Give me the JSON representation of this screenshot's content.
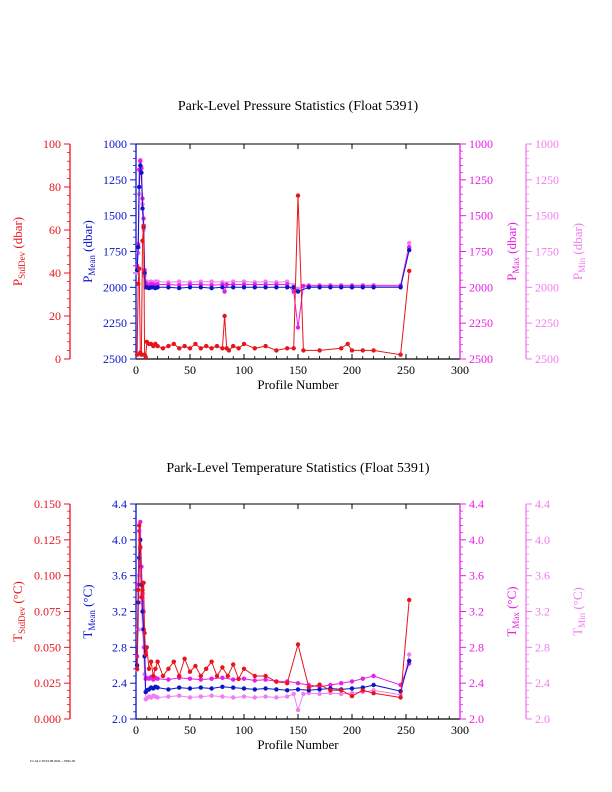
{
  "colors": {
    "stddev": "#e8141b",
    "mean": "#0a14c8",
    "max": "#e81ee8",
    "min": "#f27cf2"
  },
  "footnote": "Fri Jul 2 18:34:08 2021 ~ 5391-00",
  "chart_data": [
    {
      "type": "line",
      "title": "Park-Level Pressure Statistics (Float 5391)",
      "xlabel": "Profile Number",
      "xlim": [
        0,
        300
      ],
      "x_ticks": [
        "0",
        "50",
        "100",
        "150",
        "200",
        "250",
        "300"
      ],
      "axes": [
        {
          "id": "stddev",
          "side": "left-outer",
          "label_main": "P",
          "label_sub": "StdDev",
          "label_unit": " (dbar)",
          "lim": [
            0,
            100
          ],
          "inverted": false,
          "ticks": [
            "0",
            "20",
            "40",
            "60",
            "80",
            "100"
          ]
        },
        {
          "id": "mean",
          "side": "left-inner",
          "label_main": "P",
          "label_sub": "Mean",
          "label_unit": " (dbar)",
          "lim": [
            1000,
            2500
          ],
          "inverted": true,
          "ticks": [
            "1000",
            "1250",
            "1500",
            "1750",
            "2000",
            "2250",
            "2500"
          ]
        },
        {
          "id": "max",
          "side": "right-inner",
          "label_main": "P",
          "label_sub": "Max",
          "label_unit": " (dbar)",
          "lim": [
            1000,
            2500
          ],
          "inverted": true,
          "ticks": [
            "1000",
            "1250",
            "1500",
            "1750",
            "2000",
            "2250",
            "2500"
          ]
        },
        {
          "id": "min",
          "side": "right-outer",
          "label_main": "P",
          "label_sub": "Min",
          "label_unit": " (dbar)",
          "lim": [
            1000,
            2500
          ],
          "inverted": true,
          "ticks": [
            "1000",
            "1250",
            "1500",
            "1750",
            "2000",
            "2250",
            "2500"
          ]
        }
      ],
      "series": [
        {
          "axis": "stddev",
          "x": [
            1,
            2,
            3,
            4,
            5,
            6,
            7,
            8,
            9,
            10,
            12,
            14,
            16,
            18,
            20,
            25,
            30,
            35,
            40,
            45,
            50,
            55,
            60,
            65,
            70,
            75,
            80,
            82,
            84,
            86,
            90,
            95,
            100,
            110,
            120,
            130,
            140,
            146,
            150,
            155,
            170,
            190,
            196,
            200,
            210,
            220,
            245,
            253
          ],
          "y": [
            2,
            35,
            42,
            3,
            2,
            55,
            62,
            2,
            1,
            8,
            7,
            7,
            6,
            7,
            6,
            5,
            6,
            7,
            5,
            6,
            5,
            7,
            5,
            6,
            5,
            6,
            5,
            20,
            5,
            4,
            6,
            5,
            7,
            5,
            6,
            4,
            5,
            5,
            76,
            4,
            4,
            5,
            7,
            4,
            4,
            4,
            2,
            41
          ]
        },
        {
          "axis": "mean",
          "x": [
            1,
            2,
            3,
            4,
            5,
            6,
            7,
            8,
            9,
            10,
            12,
            14,
            16,
            18,
            20,
            30,
            40,
            50,
            60,
            70,
            80,
            90,
            100,
            110,
            120,
            130,
            140,
            146,
            150,
            160,
            170,
            180,
            190,
            200,
            210,
            220,
            245,
            253
          ],
          "y": [
            1880,
            1720,
            1300,
            1150,
            1200,
            1450,
            1580,
            1900,
            2000,
            2000,
            2005,
            2000,
            2000,
            2005,
            2000,
            2000,
            2005,
            2000,
            2000,
            2005,
            2000,
            2000,
            2000,
            2000,
            2000,
            2000,
            2000,
            2000,
            2030,
            2000,
            2000,
            2000,
            2000,
            2000,
            2000,
            2000,
            2000,
            1740
          ]
        },
        {
          "axis": "max",
          "x": [
            1,
            2,
            3,
            4,
            5,
            6,
            7,
            8,
            9,
            10,
            12,
            14,
            16,
            18,
            20,
            30,
            40,
            50,
            60,
            70,
            80,
            82,
            84,
            90,
            100,
            110,
            120,
            130,
            140,
            146,
            150,
            155,
            160,
            170,
            180,
            190,
            200,
            210,
            220,
            245,
            253
          ],
          "y": [
            1850,
            1700,
            1180,
            1120,
            1170,
            1380,
            1520,
            1880,
            1970,
            1980,
            1985,
            1975,
            1980,
            1985,
            1980,
            1980,
            1985,
            1980,
            1980,
            1985,
            1980,
            2030,
            1980,
            1980,
            1980,
            1980,
            1980,
            1980,
            1980,
            2030,
            2280,
            1990,
            1990,
            1990,
            1990,
            1990,
            1990,
            1990,
            1990,
            1990,
            1720
          ]
        },
        {
          "axis": "min",
          "x": [
            1,
            2,
            3,
            4,
            5,
            6,
            7,
            8,
            9,
            10,
            12,
            14,
            16,
            18,
            20,
            30,
            40,
            50,
            60,
            70,
            80,
            90,
            100,
            110,
            120,
            130,
            140,
            146,
            150,
            160,
            170,
            180,
            190,
            200,
            210,
            220,
            245,
            253
          ],
          "y": [
            1900,
            1760,
            1350,
            1110,
            1160,
            1420,
            1600,
            1920,
            1970,
            1960,
            1965,
            1960,
            1965,
            1960,
            1960,
            1965,
            1960,
            1965,
            1960,
            1960,
            1965,
            1960,
            1960,
            1965,
            1960,
            1965,
            1960,
            1985,
            2010,
            1985,
            1985,
            1985,
            1985,
            1985,
            1985,
            1985,
            1985,
            1690
          ]
        }
      ]
    },
    {
      "type": "line",
      "title": "Park-Level Temperature Statistics (Float 5391)",
      "xlabel": "Profile Number",
      "xlim": [
        0,
        300
      ],
      "x_ticks": [
        "0",
        "50",
        "100",
        "150",
        "200",
        "250",
        "300"
      ],
      "axes": [
        {
          "id": "stddev",
          "side": "left-outer",
          "label_main": "T",
          "label_sub": "StdDev",
          "label_unit": " (°C)",
          "lim": [
            0,
            0.15
          ],
          "inverted": false,
          "ticks": [
            "0.000",
            "0.025",
            "0.050",
            "0.075",
            "0.100",
            "0.125",
            "0.150"
          ]
        },
        {
          "id": "mean",
          "side": "left-inner",
          "label_main": "T",
          "label_sub": "Mean",
          "label_unit": " (°C)",
          "lim": [
            2.0,
            4.4
          ],
          "inverted": false,
          "ticks": [
            "2.0",
            "2.4",
            "2.8",
            "3.2",
            "3.6",
            "4.0",
            "4.4"
          ]
        },
        {
          "id": "max",
          "side": "right-inner",
          "label_main": "T",
          "label_sub": "Max",
          "label_unit": " (°C)",
          "lim": [
            2.0,
            4.4
          ],
          "inverted": false,
          "ticks": [
            "2.0",
            "2.4",
            "2.8",
            "3.2",
            "3.6",
            "4.0",
            "4.4"
          ]
        },
        {
          "id": "min",
          "side": "right-outer",
          "label_main": "T",
          "label_sub": "Min",
          "label_unit": " (°C)",
          "lim": [
            2.0,
            4.4
          ],
          "inverted": false,
          "ticks": [
            "2.0",
            "2.4",
            "2.8",
            "3.2",
            "3.6",
            "4.0",
            "4.4"
          ]
        }
      ],
      "series": [
        {
          "axis": "stddev",
          "x": [
            1,
            2,
            3,
            4,
            5,
            6,
            7,
            8,
            9,
            10,
            12,
            14,
            16,
            18,
            20,
            25,
            30,
            35,
            40,
            45,
            50,
            55,
            60,
            65,
            70,
            75,
            80,
            85,
            90,
            95,
            100,
            110,
            120,
            130,
            140,
            150,
            160,
            170,
            180,
            190,
            200,
            210,
            220,
            245,
            253
          ],
          "y": [
            0.035,
            0.09,
            0.135,
            0.12,
            0.085,
            0.09,
            0.095,
            0.06,
            0.045,
            0.05,
            0.035,
            0.04,
            0.03,
            0.035,
            0.04,
            0.03,
            0.035,
            0.04,
            0.03,
            0.042,
            0.033,
            0.037,
            0.03,
            0.035,
            0.04,
            0.03,
            0.036,
            0.03,
            0.038,
            0.028,
            0.035,
            0.03,
            0.03,
            0.026,
            0.025,
            0.052,
            0.022,
            0.024,
            0.02,
            0.02,
            0.016,
            0.02,
            0.018,
            0.015,
            0.083
          ]
        },
        {
          "axis": "mean",
          "x": [
            1,
            2,
            3,
            4,
            5,
            6,
            7,
            8,
            9,
            10,
            12,
            14,
            16,
            18,
            20,
            30,
            40,
            50,
            60,
            70,
            80,
            90,
            100,
            110,
            120,
            130,
            140,
            150,
            160,
            170,
            180,
            190,
            200,
            210,
            220,
            245,
            253
          ],
          "y": [
            2.6,
            3.3,
            3.8,
            4.0,
            3.5,
            3.2,
            3.0,
            2.7,
            2.3,
            2.32,
            2.33,
            2.35,
            2.34,
            2.36,
            2.35,
            2.33,
            2.35,
            2.34,
            2.35,
            2.34,
            2.36,
            2.35,
            2.34,
            2.33,
            2.34,
            2.33,
            2.32,
            2.33,
            2.32,
            2.33,
            2.34,
            2.33,
            2.34,
            2.35,
            2.38,
            2.31,
            2.65
          ]
        },
        {
          "axis": "max",
          "x": [
            1,
            2,
            3,
            4,
            5,
            6,
            7,
            8,
            9,
            10,
            12,
            14,
            16,
            18,
            20,
            30,
            40,
            50,
            60,
            70,
            80,
            90,
            100,
            110,
            120,
            130,
            140,
            150,
            160,
            170,
            180,
            190,
            200,
            210,
            220,
            245,
            253
          ],
          "y": [
            2.7,
            3.5,
            4.1,
            4.2,
            3.7,
            3.4,
            3.2,
            2.8,
            2.45,
            2.46,
            2.45,
            2.47,
            2.44,
            2.46,
            2.45,
            2.44,
            2.46,
            2.45,
            2.44,
            2.45,
            2.46,
            2.44,
            2.45,
            2.43,
            2.44,
            2.42,
            2.42,
            2.4,
            2.38,
            2.36,
            2.38,
            2.4,
            2.42,
            2.45,
            2.48,
            2.38,
            2.62
          ]
        },
        {
          "axis": "min",
          "x": [
            1,
            2,
            3,
            4,
            5,
            6,
            7,
            8,
            9,
            10,
            12,
            14,
            16,
            18,
            20,
            30,
            40,
            50,
            60,
            70,
            80,
            90,
            100,
            110,
            120,
            130,
            140,
            146,
            150,
            155,
            160,
            170,
            180,
            190,
            200,
            210,
            220,
            245,
            253
          ],
          "y": [
            2.55,
            3.0,
            3.6,
            3.9,
            3.3,
            3.0,
            2.8,
            2.5,
            2.22,
            2.23,
            2.25,
            2.24,
            2.26,
            2.25,
            2.24,
            2.25,
            2.26,
            2.24,
            2.25,
            2.26,
            2.25,
            2.24,
            2.25,
            2.24,
            2.25,
            2.24,
            2.25,
            2.28,
            2.1,
            2.28,
            2.29,
            2.28,
            2.29,
            2.28,
            2.29,
            2.3,
            2.32,
            2.27,
            2.72
          ]
        }
      ]
    }
  ]
}
